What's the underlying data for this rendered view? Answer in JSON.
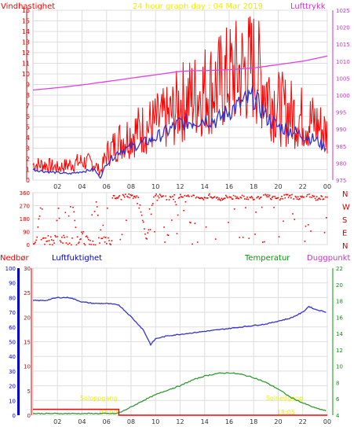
{
  "chart_data": [
    {
      "type": "line",
      "title": "24 hour graph day : 04 Mar 2019",
      "left_label": "Vindhastighet",
      "right_label": "Lufttrykk",
      "x_ticks": [
        "02",
        "04",
        "06",
        "08",
        "10",
        "12",
        "14",
        "16",
        "18",
        "20",
        "22",
        "00"
      ],
      "y_left_ticks": [
        0,
        1,
        2,
        3,
        4,
        5,
        6,
        7,
        8,
        9,
        10,
        11,
        12,
        13,
        14,
        15,
        16
      ],
      "y_right_ticks": [
        975,
        980,
        985,
        990,
        995,
        1000,
        1005,
        1010,
        1015,
        1020,
        1025
      ],
      "ylim_left": [
        0,
        16
      ],
      "ylim_right": [
        975,
        1025
      ],
      "grid": true,
      "series": [
        {
          "name": "Vindhastighet",
          "axis": "left",
          "color": "#ff0000",
          "style": "gust",
          "x": [
            0,
            1,
            2,
            3,
            4,
            5,
            5.5,
            6,
            7,
            8,
            9,
            10,
            11,
            11.5,
            12,
            13,
            14,
            15,
            16,
            17,
            18,
            19,
            20,
            21,
            22,
            23,
            24
          ],
          "y": [
            1.5,
            1.5,
            1.2,
            1.5,
            1.8,
            1.6,
            0.8,
            2.5,
            3.8,
            4.5,
            5,
            5.5,
            6,
            6.5,
            7.5,
            8,
            8.8,
            9.2,
            10,
            10.5,
            11,
            9,
            7,
            6.5,
            6,
            5.5,
            4.5
          ]
        },
        {
          "name": "Vindhastighet middel",
          "axis": "left",
          "color": "#3333cc",
          "style": "mean",
          "x": [
            0,
            1,
            2,
            3,
            4,
            5,
            5.5,
            6,
            7,
            8,
            9,
            10,
            11,
            12,
            13,
            14,
            15,
            16,
            17,
            18,
            19,
            20,
            21,
            22,
            23,
            24
          ],
          "y": [
            1,
            0.8,
            0.7,
            0.6,
            0.8,
            1,
            0.2,
            1.6,
            2.7,
            3.1,
            3.5,
            4,
            4.6,
            5.4,
            5.5,
            5.8,
            5.6,
            6.5,
            7.2,
            7.8,
            6,
            5,
            4.7,
            4.2,
            3.8,
            3
          ]
        },
        {
          "name": "Lufttrykk",
          "axis": "right",
          "color": "#e040e0",
          "x": [
            0,
            2,
            4,
            6,
            8,
            10,
            12,
            13,
            14,
            16,
            18,
            20,
            22,
            24
          ],
          "y": [
            1001.5,
            1002.2,
            1003,
            1004,
            1005,
            1006,
            1007,
            1007.2,
            1007.2,
            1007.5,
            1008,
            1009,
            1010,
            1011.5
          ]
        }
      ]
    },
    {
      "type": "scatter",
      "right_labels": [
        "N",
        "W",
        "S",
        "E",
        "N"
      ],
      "y_ticks": [
        0,
        90,
        180,
        270,
        360
      ],
      "ylim": [
        0,
        360
      ],
      "x_ticks": [
        "02",
        "04",
        "06",
        "08",
        "10",
        "12",
        "14",
        "16",
        "18",
        "20",
        "22",
        "00"
      ],
      "series": [
        {
          "name": "Vindretning",
          "color": "#ff0000",
          "x": [
            0.2,
            0.6,
            1.1,
            1.6,
            2.1,
            2.6,
            3.1,
            3.6,
            4.1,
            4.6,
            5.1,
            5.6,
            6.2,
            6.8,
            7.4,
            8,
            8.6,
            9.2,
            9.8,
            10.4,
            11,
            11.6,
            12.2,
            12.8,
            13.4,
            14,
            14.6,
            15.2,
            15.8,
            16.4,
            17,
            17.6,
            18.2,
            18.8,
            19.4,
            20,
            20.6,
            21.2,
            21.8,
            22.4,
            23,
            23.6
          ],
          "y": [
            20,
            290,
            60,
            15,
            200,
            25,
            330,
            40,
            100,
            10,
            300,
            30,
            340,
            330,
            345,
            340,
            335,
            20,
            340,
            345,
            320,
            335,
            340,
            330,
            335,
            325,
            340,
            320,
            335,
            330,
            340,
            325,
            335,
            340,
            330,
            320,
            345,
            335,
            330,
            340,
            325,
            330
          ]
        }
      ]
    },
    {
      "type": "line",
      "labels": {
        "precip": "Nedbør",
        "humidity": "Luftfuktighet",
        "temp": "Temperatur",
        "dew": "Duggpunkt",
        "sunrise": "Soloppgang",
        "sunset": "Solnedgang",
        "sunrise_time": "07:00",
        "sunset_time": "18:05"
      },
      "x_ticks": [
        "02",
        "04",
        "06",
        "08",
        "10",
        "12",
        "14",
        "16",
        "18",
        "20",
        "22",
        "00"
      ],
      "y_humidity_ticks": [
        0,
        10,
        20,
        30,
        40,
        50,
        60,
        70,
        80,
        90,
        100
      ],
      "y_precip_ticks": [
        0,
        5,
        10,
        15,
        20,
        25,
        30
      ],
      "y_temp_ticks": [
        4,
        6,
        8,
        10,
        12,
        14,
        16,
        18,
        20,
        22
      ],
      "ylim_humidity": [
        0,
        100
      ],
      "ylim_temp": [
        4,
        22
      ],
      "sunrise_x": 7.0,
      "sunset_x": 18.1,
      "series": [
        {
          "name": "Luftfuktighet",
          "axis": "humidity",
          "color": "#3333cc",
          "x": [
            0,
            1,
            2,
            3,
            4,
            5,
            6,
            7,
            8,
            9,
            9.6,
            10,
            11,
            12,
            13,
            14,
            15,
            16,
            17,
            18,
            19,
            20,
            21,
            22,
            22.5,
            23,
            24
          ],
          "y": [
            78,
            78,
            80,
            80,
            77,
            76,
            76,
            75,
            67,
            58,
            48,
            52,
            54,
            55,
            56,
            57,
            58,
            59,
            60,
            61,
            62,
            64,
            66,
            70,
            74,
            72,
            70
          ]
        },
        {
          "name": "Temperatur",
          "axis": "temp",
          "color": "#339933",
          "x": [
            0,
            6.8,
            7.2,
            8,
            9,
            10,
            11,
            12,
            13,
            14,
            15,
            16,
            17,
            18,
            19,
            20,
            21,
            22,
            23,
            24
          ],
          "y": [
            4.2,
            4.2,
            4.4,
            5,
            5.8,
            6.5,
            7.1,
            7.6,
            8.3,
            8.8,
            9.1,
            9.2,
            9,
            8.6,
            8,
            7.2,
            6.2,
            5.5,
            4.9,
            4.5
          ]
        },
        {
          "name": "Nedbør",
          "axis": "humidity",
          "color": "#ff0000",
          "x": [
            0,
            7,
            7.001,
            24
          ],
          "y": [
            4,
            4,
            0,
            0
          ]
        }
      ]
    }
  ]
}
